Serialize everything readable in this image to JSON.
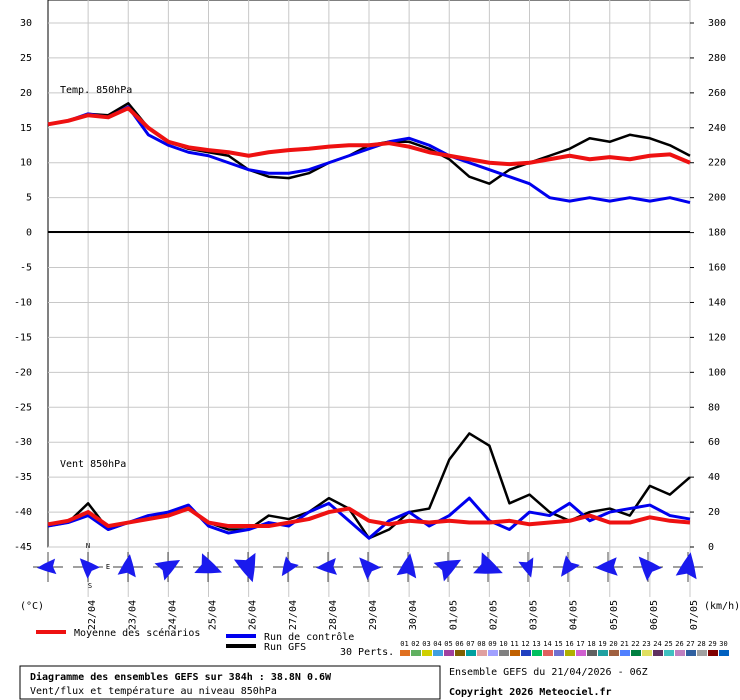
{
  "chart_data": {
    "type": "line",
    "panel_labels": [
      "Temp. 850hPa",
      "Vent 850hPa"
    ],
    "ylabel": "(°C)",
    "y2label": "(km/h)",
    "x": [
      0,
      12,
      24,
      36,
      48,
      60,
      72,
      84,
      96,
      108,
      120,
      132,
      144,
      156,
      168,
      180,
      192,
      204,
      216,
      228,
      240,
      252,
      264,
      276,
      288,
      300,
      312,
      324,
      336,
      348,
      360,
      372,
      384
    ],
    "xlim": [
      0,
      384
    ],
    "xticks": [
      {
        "value": 24,
        "label": "22/04"
      },
      {
        "value": 48,
        "label": "23/04"
      },
      {
        "value": 72,
        "label": "24/04"
      },
      {
        "value": 96,
        "label": "25/04"
      },
      {
        "value": 120,
        "label": "26/04"
      },
      {
        "value": 144,
        "label": "27/04"
      },
      {
        "value": 168,
        "label": "28/04"
      },
      {
        "value": 192,
        "label": "29/04"
      },
      {
        "value": 216,
        "label": "30/04"
      },
      {
        "value": 240,
        "label": "01/05"
      },
      {
        "value": 264,
        "label": "02/05"
      },
      {
        "value": 288,
        "label": "03/05"
      },
      {
        "value": 312,
        "label": "04/05"
      },
      {
        "value": 336,
        "label": "05/05"
      },
      {
        "value": 360,
        "label": "06/05"
      },
      {
        "value": 384,
        "label": "07/05"
      }
    ],
    "ylim": [
      -45,
      30
    ],
    "yticks": [
      -45,
      -40,
      -35,
      -30,
      -25,
      -20,
      -15,
      -10,
      -5,
      0,
      5,
      10,
      15,
      20,
      25,
      30
    ],
    "y2lim": [
      0,
      300
    ],
    "y2ticks": [
      0,
      20,
      40,
      60,
      80,
      100,
      120,
      140,
      160,
      180,
      200,
      220,
      240,
      260,
      280,
      300
    ],
    "grid": true,
    "series": [
      {
        "name": "Run GFS",
        "color": "#000000",
        "values": [
          15.5,
          16,
          17,
          16.8,
          18.5,
          15,
          13,
          12,
          11.5,
          11,
          9,
          8,
          7.8,
          8.5,
          10,
          11,
          12.5,
          13,
          13,
          12,
          10.5,
          8,
          7,
          9,
          10,
          11,
          12,
          13.5,
          13,
          14,
          13.5,
          12.5,
          11
        ]
      },
      {
        "name": "Run de contrôle",
        "color": "#0000ee",
        "values": [
          15.5,
          16,
          17,
          16.5,
          18,
          14,
          12.5,
          11.5,
          11,
          10,
          9,
          8.5,
          8.5,
          9,
          10,
          11,
          12,
          13,
          13.5,
          12.5,
          11,
          10,
          9,
          8,
          7,
          5,
          4.5,
          5,
          4.5,
          5,
          4.5,
          5,
          4.3
        ]
      },
      {
        "name": "Moyenne des scénarios",
        "color": "#ee1111",
        "values": [
          15.5,
          16,
          16.8,
          16.5,
          17.8,
          15,
          13,
          12.2,
          11.8,
          11.5,
          11,
          11.5,
          11.8,
          12,
          12.3,
          12.5,
          12.5,
          12.8,
          12.3,
          11.5,
          11,
          10.5,
          10,
          9.8,
          10,
          10.5,
          11,
          10.5,
          10.8,
          10.5,
          11,
          11.2,
          10
        ]
      },
      {
        "color": "#000000",
        "axis": "y2",
        "values": [
          12,
          14,
          25,
          10,
          14,
          16,
          20,
          22,
          14,
          10,
          10,
          18,
          16,
          20,
          28,
          22,
          5,
          10,
          20,
          22,
          50,
          65,
          58,
          25,
          30,
          20,
          15,
          20,
          22,
          18,
          35,
          30,
          40
        ]
      },
      {
        "color": "#0000ee",
        "axis": "y2",
        "values": [
          12,
          14,
          18,
          10,
          14,
          18,
          20,
          24,
          12,
          8,
          10,
          14,
          12,
          20,
          25,
          15,
          5,
          15,
          20,
          12,
          18,
          28,
          15,
          10,
          20,
          18,
          25,
          15,
          20,
          22,
          24,
          18,
          16
        ]
      },
      {
        "color": "#ee1111",
        "axis": "y2",
        "values": [
          13,
          15,
          20,
          12,
          14,
          16,
          18,
          22,
          14,
          12,
          12,
          12,
          14,
          16,
          20,
          22,
          15,
          13,
          15,
          14,
          15,
          14,
          14,
          15,
          13,
          14,
          15,
          18,
          14,
          14,
          17,
          15,
          14
        ]
      }
    ],
    "rose_labels": [
      "N",
      "E",
      "S"
    ],
    "perturbations_label": "30 Perts.",
    "perturbation_labels": [
      "01",
      "02",
      "03",
      "04",
      "05",
      "06",
      "07",
      "08",
      "09",
      "10",
      "11",
      "12",
      "13",
      "14",
      "15",
      "16",
      "17",
      "18",
      "19",
      "20",
      "21",
      "22",
      "23",
      "24",
      "25",
      "26",
      "27",
      "28",
      "29",
      "30"
    ],
    "perturbation_colors": [
      "#e07020",
      "#60b060",
      "#d0d000",
      "#40a0e0",
      "#a040a0",
      "#806000",
      "#00a0a0",
      "#e0a0a0",
      "#a0a0ff",
      "#808080",
      "#c06000",
      "#2040c0",
      "#00c060",
      "#e06060",
      "#7070d0",
      "#b0b000",
      "#d060d0",
      "#606060",
      "#20a0a0",
      "#a06040",
      "#5080ff",
      "#008040",
      "#e0e060",
      "#603060",
      "#40c0c0",
      "#c080c0",
      "#3060a0",
      "#a0a0a0",
      "#800000",
      "#0060c0"
    ],
    "info_title": "Diagramme des ensembles GEFS sur 384h : 38.8N 0.6W",
    "info_subtitle": "Vent/flux et température au niveau 850hPa",
    "run_info": "Ensemble GEFS du 21/04/2026 - 06Z",
    "copyright": "Copyright 2026 Meteociel.fr"
  }
}
